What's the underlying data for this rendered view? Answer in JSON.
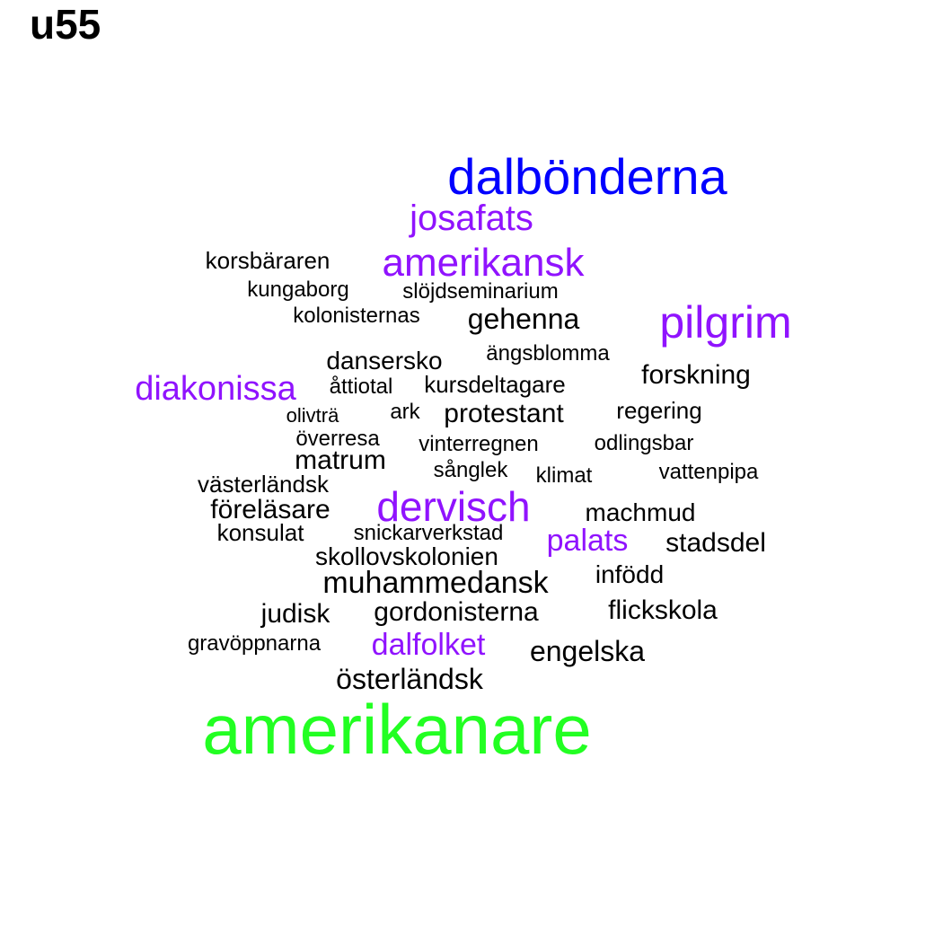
{
  "title": "u55",
  "colors": {
    "black": "#000000",
    "purple": "#9013fe",
    "blue": "#0000ff",
    "green": "#22ff22"
  },
  "words": [
    {
      "text": "amerikanare",
      "color": "green"
    },
    {
      "text": "dalbönderna",
      "color": "blue"
    },
    {
      "text": "josafats",
      "color": "purple"
    },
    {
      "text": "amerikansk",
      "color": "purple"
    },
    {
      "text": "pilgrim",
      "color": "purple"
    },
    {
      "text": "diakonissa",
      "color": "purple"
    },
    {
      "text": "dervisch",
      "color": "purple"
    },
    {
      "text": "palats",
      "color": "purple"
    },
    {
      "text": "dalfolket",
      "color": "purple"
    },
    {
      "text": "korsbäraren",
      "color": "black"
    },
    {
      "text": "kungaborg",
      "color": "black"
    },
    {
      "text": "slöjdseminarium",
      "color": "black"
    },
    {
      "text": "kolonisternas",
      "color": "black"
    },
    {
      "text": "gehenna",
      "color": "black"
    },
    {
      "text": "ängsblomma",
      "color": "black"
    },
    {
      "text": "dansersko",
      "color": "black"
    },
    {
      "text": "forskning",
      "color": "black"
    },
    {
      "text": "åttiotal",
      "color": "black"
    },
    {
      "text": "kursdeltagare",
      "color": "black"
    },
    {
      "text": "olivträ",
      "color": "black"
    },
    {
      "text": "ark",
      "color": "black"
    },
    {
      "text": "protestant",
      "color": "black"
    },
    {
      "text": "regering",
      "color": "black"
    },
    {
      "text": "överresa",
      "color": "black"
    },
    {
      "text": "vinterregnen",
      "color": "black"
    },
    {
      "text": "odlingsbar",
      "color": "black"
    },
    {
      "text": "matrum",
      "color": "black"
    },
    {
      "text": "sånglek",
      "color": "black"
    },
    {
      "text": "klimat",
      "color": "black"
    },
    {
      "text": "vattenpipa",
      "color": "black"
    },
    {
      "text": "västerländsk",
      "color": "black"
    },
    {
      "text": "föreläsare",
      "color": "black"
    },
    {
      "text": "machmud",
      "color": "black"
    },
    {
      "text": "konsulat",
      "color": "black"
    },
    {
      "text": "snickarverkstad",
      "color": "black"
    },
    {
      "text": "stadsdel",
      "color": "black"
    },
    {
      "text": "skollovskolonien",
      "color": "black"
    },
    {
      "text": "infödd",
      "color": "black"
    },
    {
      "text": "muhammedansk",
      "color": "black"
    },
    {
      "text": "judisk",
      "color": "black"
    },
    {
      "text": "gordonisterna",
      "color": "black"
    },
    {
      "text": "flickskola",
      "color": "black"
    },
    {
      "text": "gravöppnarna",
      "color": "black"
    },
    {
      "text": "engelska",
      "color": "black"
    },
    {
      "text": "österländsk",
      "color": "black"
    }
  ]
}
